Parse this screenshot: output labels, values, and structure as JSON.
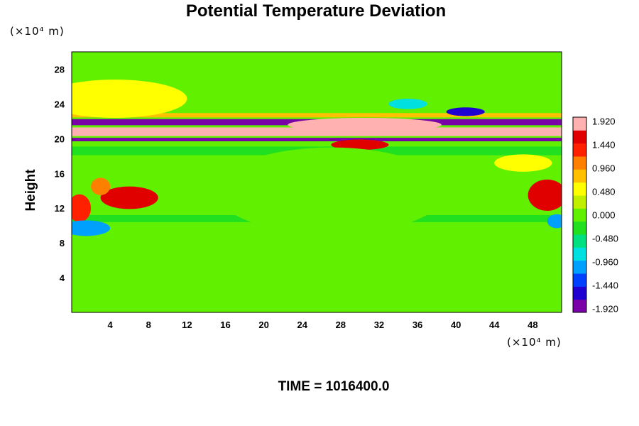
{
  "chart_data": {
    "type": "heatmap",
    "title": "Potential Temperature Deviation",
    "ylabel": "Height",
    "y_unit": "(×10⁴ m)",
    "x_unit": "(×10⁴ m)",
    "xlim": [
      0,
      51
    ],
    "ylim": [
      0,
      30
    ],
    "x_ticks": [
      4,
      8,
      12,
      16,
      20,
      24,
      28,
      32,
      36,
      40,
      44,
      48
    ],
    "y_ticks": [
      4,
      8,
      12,
      16,
      20,
      24,
      28
    ],
    "colorbar": {
      "levels": [
        -1.92,
        -1.44,
        -0.96,
        -0.48,
        0.0,
        0.48,
        0.96,
        1.44,
        1.92
      ],
      "labels": [
        "-1.920",
        "-1.440",
        "-0.960",
        "-0.480",
        "0.000",
        "0.480",
        "0.960",
        "1.440",
        "1.920"
      ],
      "range": [
        -2.0,
        2.0
      ],
      "colors": [
        "#7a00a8",
        "#2000d0",
        "#0040ff",
        "#00a0ff",
        "#00e0e0",
        "#00e080",
        "#20e020",
        "#60f000",
        "#c0f000",
        "#ffff00",
        "#ffc000",
        "#ff8000",
        "#ff2000",
        "#e00000",
        "#ffb0b0"
      ]
    },
    "features": [
      {
        "kind": "band",
        "y_center": 20.8,
        "thickness": 1.0,
        "value": 2.0
      },
      {
        "kind": "band",
        "y_center": 21.9,
        "thickness": 0.7,
        "value": -2.0
      },
      {
        "kind": "band",
        "y_center": 19.9,
        "thickness": 0.4,
        "value": -1.9
      },
      {
        "kind": "band",
        "y_center": 22.7,
        "thickness": 0.5,
        "value": 0.9
      },
      {
        "kind": "band",
        "y_center": 18.6,
        "thickness": 1.0,
        "value": -0.3
      },
      {
        "kind": "band",
        "y_center": 10.8,
        "thickness": 0.8,
        "value": -0.4
      },
      {
        "kind": "blob",
        "x": 30.5,
        "y": 21.6,
        "rx": 8.0,
        "ry": 0.8,
        "value": 1.9
      },
      {
        "kind": "blob",
        "x": 30.0,
        "y": 19.3,
        "rx": 3.0,
        "ry": 0.6,
        "value": 1.5
      },
      {
        "kind": "blob",
        "x": 4.5,
        "y": 24.6,
        "rx": 7.5,
        "ry": 2.2,
        "value": 0.6
      },
      {
        "kind": "blob",
        "x": 35.0,
        "y": 24.0,
        "rx": 2.0,
        "ry": 0.6,
        "value": -0.9
      },
      {
        "kind": "blob",
        "x": 41.0,
        "y": 23.1,
        "rx": 2.0,
        "ry": 0.5,
        "value": -1.6
      },
      {
        "kind": "blob",
        "x": 6.0,
        "y": 13.2,
        "rx": 3.0,
        "ry": 1.3,
        "value": 1.5
      },
      {
        "kind": "blob",
        "x": 3.0,
        "y": 14.5,
        "rx": 1.0,
        "ry": 1.0,
        "value": 1.0
      },
      {
        "kind": "blob",
        "x": 0.8,
        "y": 12.0,
        "rx": 1.2,
        "ry": 1.6,
        "value": 1.2
      },
      {
        "kind": "blob",
        "x": 1.5,
        "y": 9.7,
        "rx": 2.5,
        "ry": 0.9,
        "value": -1.2
      },
      {
        "kind": "blob",
        "x": 49.5,
        "y": 13.5,
        "rx": 2.0,
        "ry": 1.8,
        "value": 1.6
      },
      {
        "kind": "blob",
        "x": 50.5,
        "y": 10.5,
        "rx": 1.0,
        "ry": 0.8,
        "value": -1.2
      },
      {
        "kind": "blob",
        "x": 27.0,
        "y": 14.0,
        "rx": 12.0,
        "ry": 5.0,
        "value": -0.12
      },
      {
        "kind": "blob",
        "x": 47.0,
        "y": 17.2,
        "rx": 3.0,
        "ry": 1.0,
        "value": 0.4
      }
    ]
  },
  "footer": {
    "time_label": "TIME = 1016400.0"
  }
}
